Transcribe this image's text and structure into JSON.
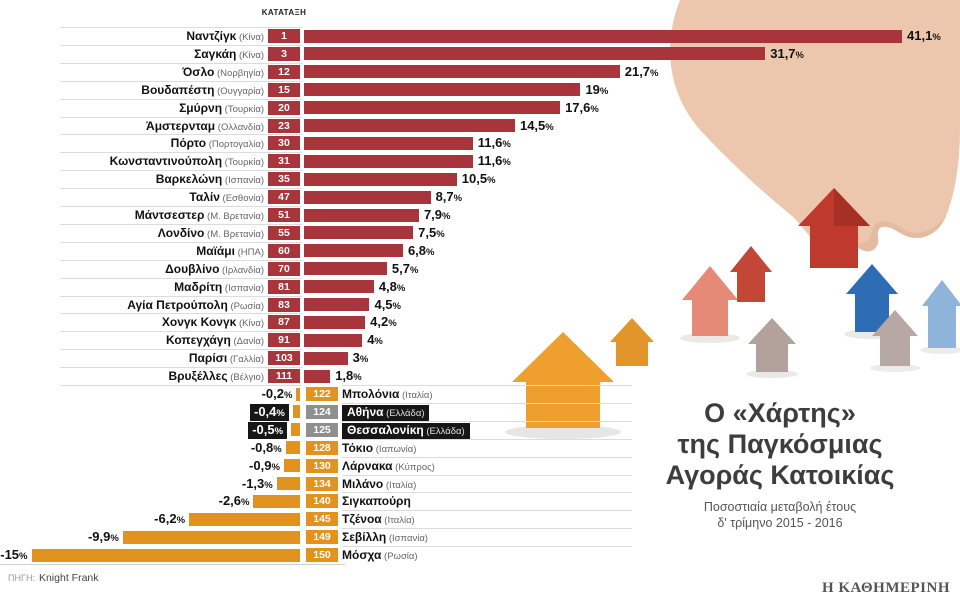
{
  "header": {
    "rank_label": "ΚΑΤΑΤΑΞΗ"
  },
  "title": {
    "line1": "Ο «Χάρτης»",
    "line2": "της Παγκόσμιας",
    "line3": "Αγοράς Κατοικίας",
    "subtitle1": "Ποσοστιαία μεταβολή έτους",
    "subtitle2": "δ' τρίμηνο 2015 - 2016"
  },
  "source": {
    "label": "ΠΗΓΗ:",
    "value": "Knight Frank"
  },
  "branding": "Η ΚΑΘΗΜΕΡΙΝΗ",
  "colors": {
    "positive": "#a8353c",
    "negative": "#e2921f",
    "highlight_bg": "#161616",
    "highlight_badge": "#8f8f8f"
  },
  "chart_data": {
    "type": "bar",
    "orientation": "horizontal-diverging",
    "unit": "%",
    "value_meaning": "Ποσοστιαία μεταβολή έτους, δ' τρίμηνο 2015 - 2016",
    "rows": [
      {
        "rank": 1,
        "city": "Ναντζίγκ",
        "country": "(Κίνα)",
        "value": 41.1,
        "label": "41,1",
        "highlight": false
      },
      {
        "rank": 3,
        "city": "Σαγκάη",
        "country": "(Κίνα)",
        "value": 31.7,
        "label": "31,7",
        "highlight": false
      },
      {
        "rank": 12,
        "city": "Όσλο",
        "country": "(Νορβηγία)",
        "value": 21.7,
        "label": "21,7",
        "highlight": false
      },
      {
        "rank": 15,
        "city": "Βουδαπέστη",
        "country": "(Ουγγαρία)",
        "value": 19,
        "label": "19",
        "highlight": false
      },
      {
        "rank": 20,
        "city": "Σμύρνη",
        "country": "(Τουρκία)",
        "value": 17.6,
        "label": "17,6",
        "highlight": false
      },
      {
        "rank": 23,
        "city": "Άμστερνταμ",
        "country": "(Ολλανδία)",
        "value": 14.5,
        "label": "14,5",
        "highlight": false
      },
      {
        "rank": 30,
        "city": "Πόρτο",
        "country": "(Πορτογαλία)",
        "value": 11.6,
        "label": "11,6",
        "highlight": false
      },
      {
        "rank": 31,
        "city": "Κωνσταντινούπολη",
        "country": "(Τουρκία)",
        "value": 11.6,
        "label": "11,6",
        "highlight": false
      },
      {
        "rank": 35,
        "city": "Βαρκελώνη",
        "country": "(Ισπανία)",
        "value": 10.5,
        "label": "10,5",
        "highlight": false
      },
      {
        "rank": 47,
        "city": "Ταλίν",
        "country": "(Εσθονία)",
        "value": 8.7,
        "label": "8,7",
        "highlight": false
      },
      {
        "rank": 51,
        "city": "Μάντσεστερ",
        "country": "(Μ. Βρετανία)",
        "value": 7.9,
        "label": "7,9",
        "highlight": false
      },
      {
        "rank": 55,
        "city": "Λονδίνο",
        "country": "(Μ. Βρετανία)",
        "value": 7.5,
        "label": "7,5",
        "highlight": false
      },
      {
        "rank": 60,
        "city": "Μαϊάμι",
        "country": "(ΗΠΑ)",
        "value": 6.8,
        "label": "6,8",
        "highlight": false
      },
      {
        "rank": 70,
        "city": "Δουβλίνο",
        "country": "(Ιρλανδία)",
        "value": 5.7,
        "label": "5,7",
        "highlight": false
      },
      {
        "rank": 81,
        "city": "Μαδρίτη",
        "country": "(Ισπανία)",
        "value": 4.8,
        "label": "4,8",
        "highlight": false
      },
      {
        "rank": 83,
        "city": "Αγία Πετρούπολη",
        "country": "(Ρωσία)",
        "value": 4.5,
        "label": "4,5",
        "highlight": false
      },
      {
        "rank": 87,
        "city": "Χονγκ Κονγκ",
        "country": "(Κίνα)",
        "value": 4.2,
        "label": "4,2",
        "highlight": false
      },
      {
        "rank": 91,
        "city": "Κοπεγχάγη",
        "country": "(Δανία)",
        "value": 4,
        "label": "4",
        "highlight": false
      },
      {
        "rank": 103,
        "city": "Παρίσι",
        "country": "(Γαλλία)",
        "value": 3,
        "label": "3",
        "highlight": false
      },
      {
        "rank": 111,
        "city": "Βρυξέλλες",
        "country": "(Βέλγιο)",
        "value": 1.8,
        "label": "1,8",
        "highlight": false
      },
      {
        "rank": 122,
        "city": "Μπολόνια",
        "country": "(Ιταλία)",
        "value": -0.2,
        "label": "-0,2",
        "highlight": false
      },
      {
        "rank": 124,
        "city": "Αθήνα",
        "country": "(Ελλάδα)",
        "value": -0.4,
        "label": "-0,4",
        "highlight": true
      },
      {
        "rank": 125,
        "city": "Θεσσαλονίκη",
        "country": "(Ελλάδα)",
        "value": -0.5,
        "label": "-0,5",
        "highlight": true
      },
      {
        "rank": 128,
        "city": "Τόκιο",
        "country": "(Ιαπωνία)",
        "value": -0.8,
        "label": "-0,8",
        "highlight": false
      },
      {
        "rank": 130,
        "city": "Λάρνακα",
        "country": "(Κύπρος)",
        "value": -0.9,
        "label": "-0,9",
        "highlight": false
      },
      {
        "rank": 134,
        "city": "Μιλάνο",
        "country": "(Ιταλία)",
        "value": -1.3,
        "label": "-1,3",
        "highlight": false
      },
      {
        "rank": 140,
        "city": "Σιγκαπούρη",
        "country": "",
        "value": -2.6,
        "label": "-2,6",
        "highlight": false
      },
      {
        "rank": 145,
        "city": "Τζένοα",
        "country": "(Ιταλία)",
        "value": -6.2,
        "label": "-6,2",
        "highlight": false
      },
      {
        "rank": 149,
        "city": "Σεβίλλη",
        "country": "(Ισπανία)",
        "value": -9.9,
        "label": "-9,9",
        "highlight": false
      },
      {
        "rank": 150,
        "city": "Μόσχα",
        "country": "(Ρωσία)",
        "value": -15,
        "label": "-15",
        "highlight": false
      }
    ]
  }
}
